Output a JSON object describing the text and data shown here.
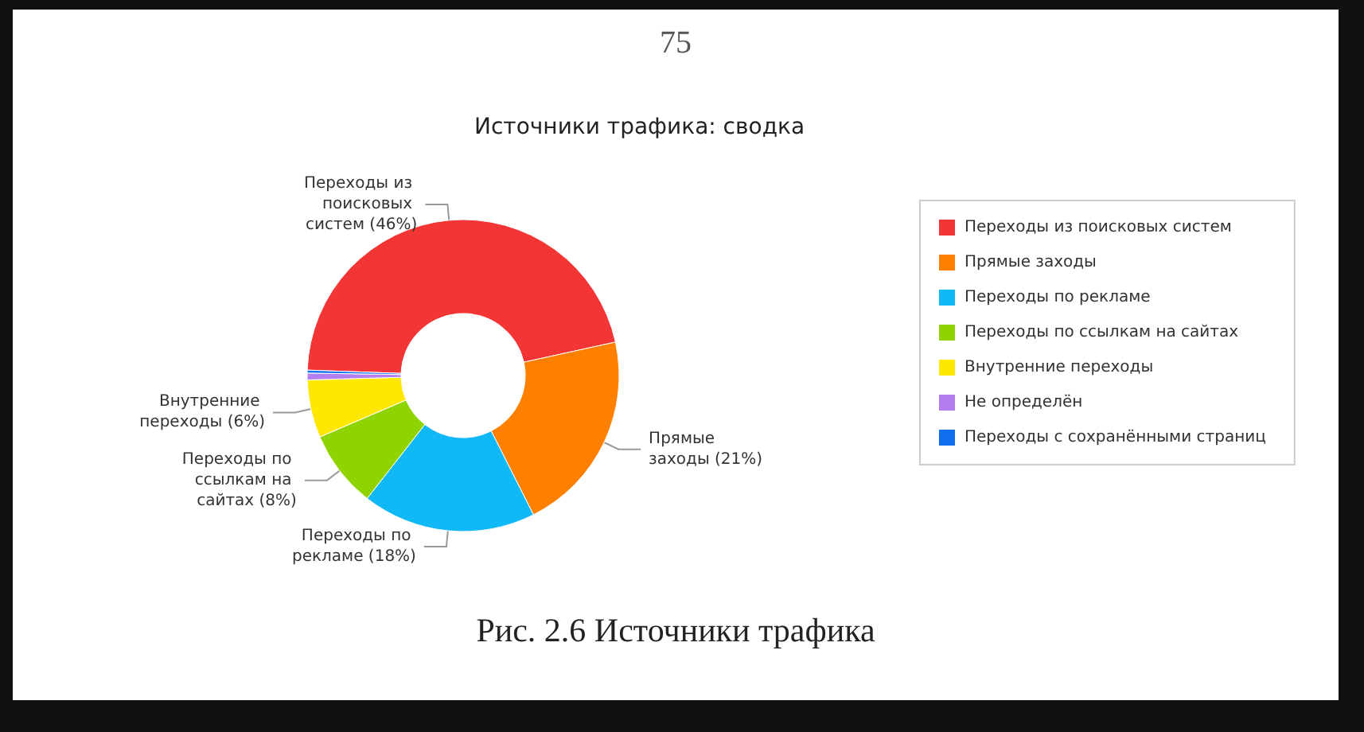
{
  "chart_data": {
    "type": "donut",
    "title": "Источники трафика: сводка",
    "categories": [
      "Переходы из поисковых систем",
      "Прямые заходы",
      "Переходы по рекламе",
      "Переходы по ссылкам на сайтах",
      "Внутренние переходы",
      "Не определён",
      "Переходы с сохранёнными страниц"
    ],
    "values": [
      46,
      21,
      18,
      8,
      6,
      0.7,
      0.3
    ],
    "colors": [
      "#f33535",
      "#ff8000",
      "#10b8f5",
      "#8fd400",
      "#ffe800",
      "#b57ef0",
      "#1070f0"
    ],
    "value_labels": [
      "Переходы из поисковых систем (46%)",
      "Прямые заходы (21%)",
      "Переходы по рекламе (18%)",
      "Переходы по ссылкам на сайтах (8%)",
      "Внутренние переходы (6%)",
      null,
      null
    ],
    "legend": "right",
    "annotations": [
      "75",
      "Рис. 2.6  Источники трафика"
    ]
  }
}
